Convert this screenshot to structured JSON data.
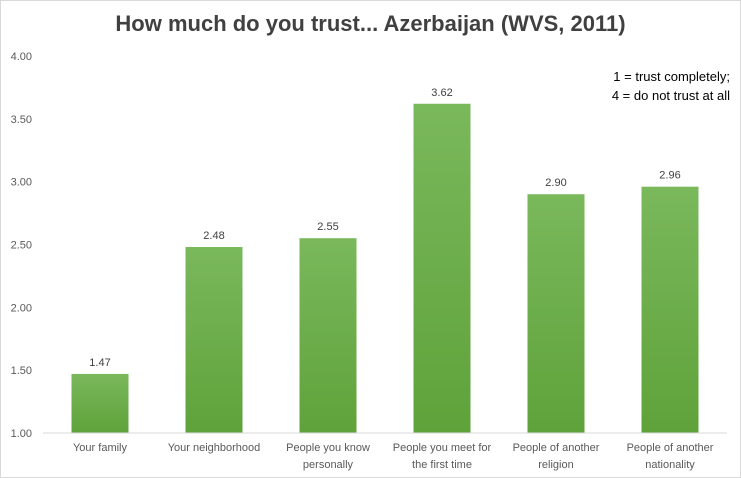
{
  "chart_data": {
    "type": "bar",
    "title": "How much do you trust... Azerbaijan (WVS, 2011)",
    "note": [
      "1 = trust completely;",
      "4 = do not trust at all"
    ],
    "categories": [
      [
        "Your family"
      ],
      [
        "Your neighborhood"
      ],
      [
        "People you know",
        "personally"
      ],
      [
        "People you meet for",
        "the first time"
      ],
      [
        "People of another",
        "religion"
      ],
      [
        "People of another",
        "nationality"
      ]
    ],
    "values": [
      1.47,
      2.48,
      2.55,
      3.62,
      2.9,
      2.96
    ],
    "value_labels": [
      "1.47",
      "2.48",
      "2.55",
      "3.62",
      "2.90",
      "2.96"
    ],
    "ylim": [
      1.0,
      4.0
    ],
    "yticks": [
      "1.00",
      "1.50",
      "2.00",
      "2.50",
      "3.00",
      "3.50",
      "4.00"
    ],
    "grid": false,
    "bar_color_top": "#7ab85c",
    "bar_color_bottom": "#5fa23a",
    "xlabel": "",
    "ylabel": ""
  }
}
